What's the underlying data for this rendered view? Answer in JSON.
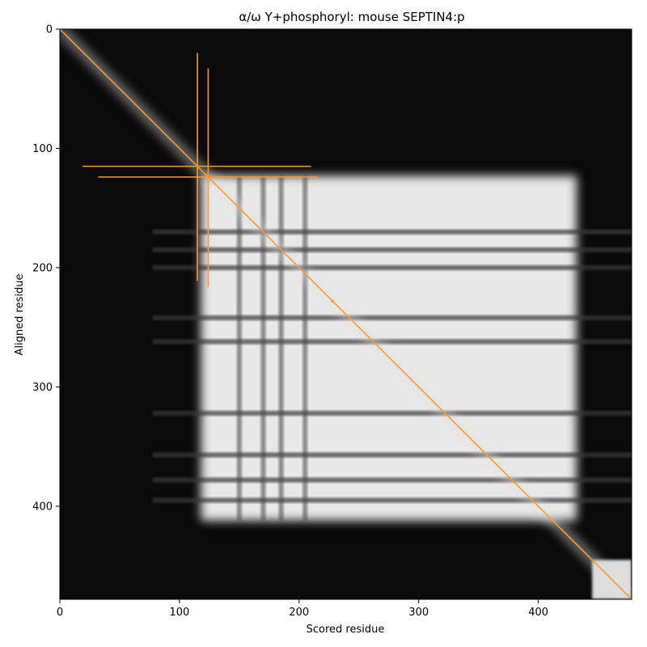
{
  "chart_data": {
    "type": "heatmap",
    "title": "α/ω Y+phosphoryl: mouse SEPTIN4:p",
    "xlabel": "Scored residue",
    "ylabel": "Aligned residue",
    "xlim": [
      0,
      478
    ],
    "ylim": [
      478,
      0
    ],
    "xticks": [
      0,
      100,
      200,
      300,
      400
    ],
    "yticks": [
      0,
      100,
      200,
      300,
      400
    ],
    "colormap": "greys (black = low, white = high)",
    "overlay_color": "#f59b35",
    "diagonal": {
      "from": [
        0,
        0
      ],
      "to": [
        478,
        478
      ]
    },
    "highlighted_residues": [
      {
        "residue": 115,
        "h_span": [
          19,
          210
        ],
        "v_span": [
          20,
          211
        ]
      },
      {
        "residue": 124,
        "h_span": [
          32,
          215
        ],
        "v_span": [
          33,
          216
        ]
      }
    ],
    "marker_points": [
      {
        "x": 228,
        "y": 228
      }
    ],
    "high_similarity_block": {
      "x": [
        118,
        432
      ],
      "y": [
        123,
        412
      ]
    },
    "dark_bands_y": [
      170,
      185,
      200,
      242,
      262,
      322,
      357,
      378,
      395
    ],
    "dark_bands_x": [
      150,
      170,
      185,
      205
    ],
    "tail_block": {
      "x": [
        445,
        478
      ],
      "y": [
        445,
        478
      ]
    }
  }
}
